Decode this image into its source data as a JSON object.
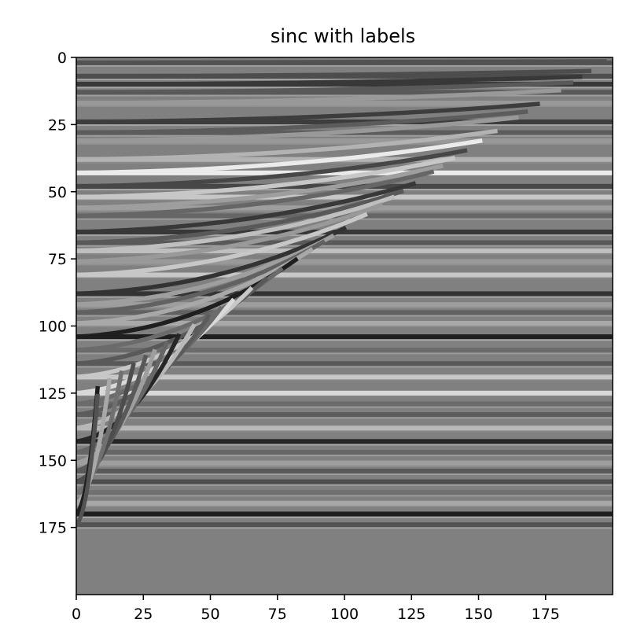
{
  "chart_data": {
    "type": "heatmap",
    "title": "sinc with labels",
    "xlabel": "",
    "ylabel": "",
    "xlim": [
      0,
      200
    ],
    "ylim": [
      200,
      0
    ],
    "y_axis_inverted": true,
    "colormap": "gray",
    "grid": false,
    "x_ticks": [
      {
        "value": 0,
        "label": "0"
      },
      {
        "value": 25,
        "label": "25"
      },
      {
        "value": 50,
        "label": "50"
      },
      {
        "value": 75,
        "label": "75"
      },
      {
        "value": 100,
        "label": "100"
      },
      {
        "value": 125,
        "label": "125"
      },
      {
        "value": 150,
        "label": "150"
      },
      {
        "value": 175,
        "label": "175"
      }
    ],
    "y_ticks": [
      {
        "value": 0,
        "label": "0"
      },
      {
        "value": 25,
        "label": "25"
      },
      {
        "value": 50,
        "label": "50"
      },
      {
        "value": 75,
        "label": "75"
      },
      {
        "value": 100,
        "label": "100"
      },
      {
        "value": 125,
        "label": "125"
      },
      {
        "value": 150,
        "label": "150"
      },
      {
        "value": 175,
        "label": "175"
      }
    ],
    "background_level": 0.5,
    "reflector_rows": [
      {
        "row": 2,
        "level": 0.32
      },
      {
        "row": 7,
        "level": 0.3
      },
      {
        "row": 10,
        "level": 0.22
      },
      {
        "row": 13,
        "level": 0.35
      },
      {
        "row": 17,
        "level": 0.6
      },
      {
        "row": 24,
        "level": 0.24
      },
      {
        "row": 28,
        "level": 0.36
      },
      {
        "row": 31,
        "level": 0.6
      },
      {
        "row": 38,
        "level": 0.7
      },
      {
        "row": 43,
        "level": 0.92
      },
      {
        "row": 48,
        "level": 0.28
      },
      {
        "row": 52,
        "level": 0.78
      },
      {
        "row": 56,
        "level": 0.62
      },
      {
        "row": 59,
        "level": 0.4
      },
      {
        "row": 65,
        "level": 0.22
      },
      {
        "row": 69,
        "level": 0.35
      },
      {
        "row": 72,
        "level": 0.75
      },
      {
        "row": 76,
        "level": 0.6
      },
      {
        "row": 81,
        "level": 0.78
      },
      {
        "row": 88,
        "level": 0.2
      },
      {
        "row": 92,
        "level": 0.62
      },
      {
        "row": 95,
        "level": 0.38
      },
      {
        "row": 99,
        "level": 0.66
      },
      {
        "row": 104,
        "level": 0.12
      },
      {
        "row": 109,
        "level": 0.42
      },
      {
        "row": 114,
        "level": 0.35
      },
      {
        "row": 119,
        "level": 0.78
      },
      {
        "row": 125,
        "level": 0.85
      },
      {
        "row": 129,
        "level": 0.42
      },
      {
        "row": 133,
        "level": 0.36
      },
      {
        "row": 138,
        "level": 0.72
      },
      {
        "row": 143,
        "level": 0.15
      },
      {
        "row": 147,
        "level": 0.4
      },
      {
        "row": 151,
        "level": 0.62
      },
      {
        "row": 154,
        "level": 0.35
      },
      {
        "row": 158,
        "level": 0.3
      },
      {
        "row": 162,
        "level": 0.44
      },
      {
        "row": 166,
        "level": 0.66
      },
      {
        "row": 170,
        "level": 0.12
      },
      {
        "row": 174,
        "level": 0.32
      }
    ]
  }
}
